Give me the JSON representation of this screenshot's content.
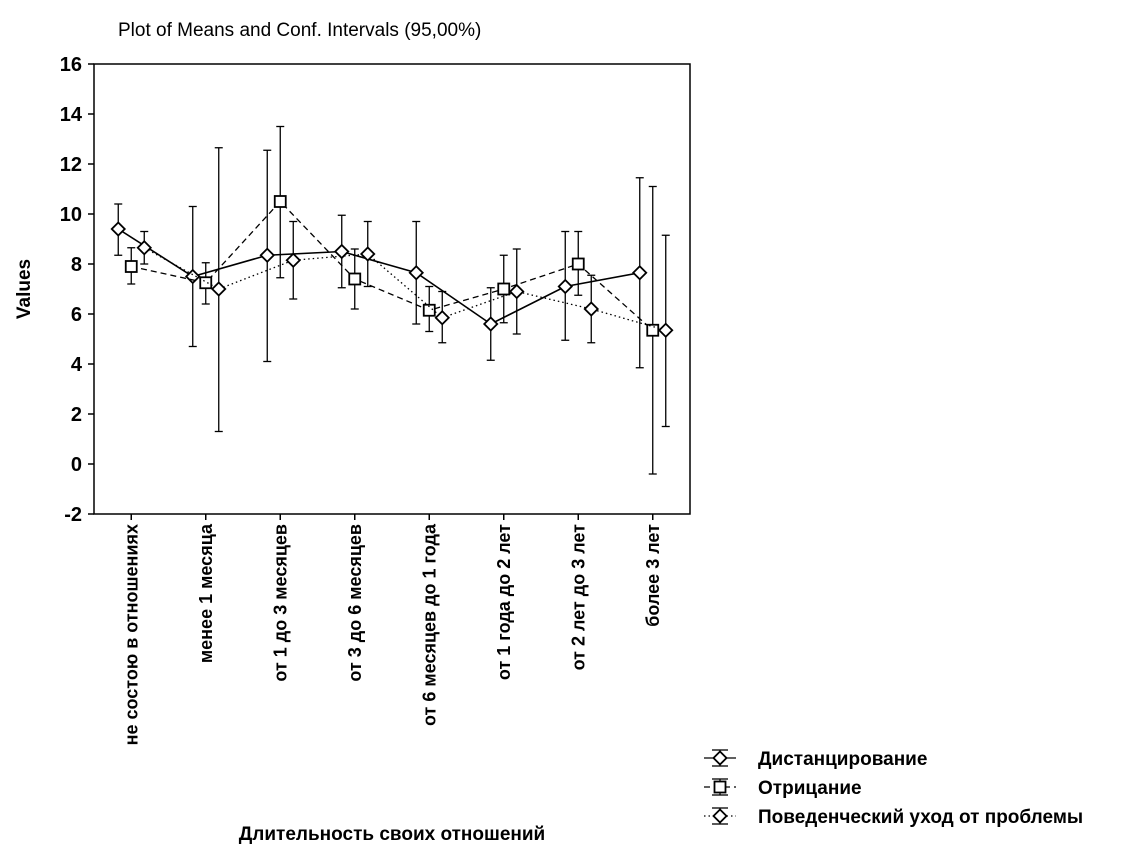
{
  "chart_data": {
    "type": "line",
    "title": "Plot of Means and Conf. Intervals (95,00%)",
    "xlabel": "Длительность своих отношений",
    "ylabel": "Values",
    "ylim": [
      -2,
      16
    ],
    "yticks": [
      -2,
      0,
      2,
      4,
      6,
      8,
      10,
      12,
      14,
      16
    ],
    "grid": false,
    "legend_position": "bottom-right",
    "categories": [
      "не состою в отношениях",
      "менее 1 месяца",
      "от 1 до 3 месяцев",
      "от 3 до 6 месяцев",
      "от 6 месяцев до 1 года",
      "от 1 года до 2 лет",
      "от 2 лет до 3 лет",
      "более 3 лет"
    ],
    "series": [
      {
        "name": "Дистанцирование",
        "marker": "diamond",
        "line_style": "solid",
        "means": [
          9.4,
          7.5,
          8.35,
          8.5,
          7.65,
          5.6,
          7.1,
          7.65
        ],
        "ci_low": [
          8.35,
          4.7,
          4.1,
          7.05,
          5.6,
          4.15,
          4.95,
          3.85
        ],
        "ci_high": [
          10.4,
          10.3,
          12.55,
          9.95,
          9.7,
          7.05,
          9.3,
          11.45
        ]
      },
      {
        "name": "Отрицание",
        "marker": "square",
        "line_style": "dashed",
        "means": [
          7.9,
          7.25,
          10.5,
          7.4,
          6.15,
          7.0,
          8.0,
          5.35
        ],
        "ci_low": [
          7.2,
          6.4,
          7.45,
          6.2,
          5.3,
          5.65,
          6.75,
          -0.4
        ],
        "ci_high": [
          8.65,
          8.05,
          13.5,
          8.6,
          7.1,
          8.35,
          9.3,
          11.1
        ]
      },
      {
        "name": "Поведенческий уход от проблемы",
        "marker": "diamond",
        "line_style": "dotted",
        "means": [
          8.65,
          7.0,
          8.15,
          8.4,
          5.85,
          6.9,
          6.2,
          5.35
        ],
        "ci_low": [
          8.0,
          1.3,
          6.6,
          7.1,
          4.85,
          5.2,
          4.85,
          1.5
        ],
        "ci_high": [
          9.3,
          12.65,
          9.7,
          9.7,
          6.9,
          8.6,
          7.55,
          9.15
        ]
      }
    ]
  }
}
